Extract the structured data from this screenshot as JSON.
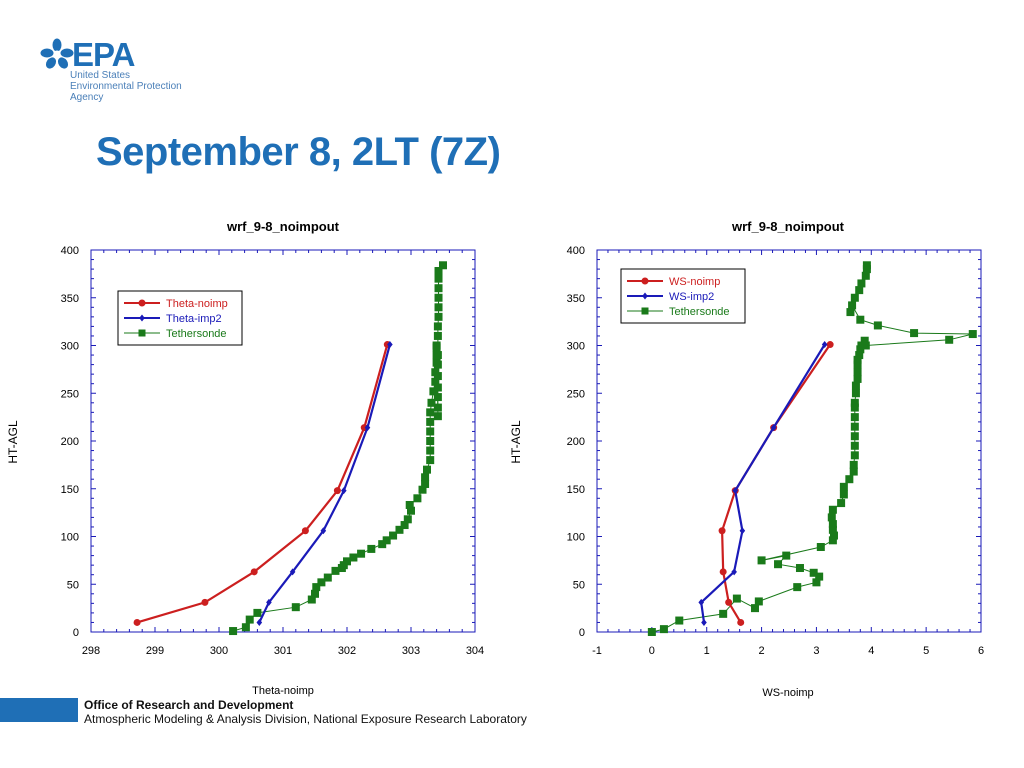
{
  "brand": {
    "name": "EPA",
    "lines": [
      "United States",
      "Environmental Protection",
      "Agency"
    ],
    "color": "#1f6fb6"
  },
  "page_title": "September 8, 2LT (7Z)",
  "footer": {
    "org": "Office of Research and Development",
    "division": "Atmospheric Modeling & Analysis Division, National Exposure Research Laboratory"
  },
  "chart_data": [
    {
      "type": "line",
      "title": "wrf_9-8_noimpout",
      "xlabel": "Theta-noimp",
      "ylabel": "HT-AGL",
      "xlim": [
        298,
        304
      ],
      "ylim": [
        0,
        400
      ],
      "xticks": [
        298,
        299,
        300,
        301,
        302,
        303,
        304
      ],
      "yticks": [
        0,
        50,
        100,
        150,
        200,
        250,
        300,
        350,
        400
      ],
      "legend_position": "top-left",
      "series": [
        {
          "name": "Theta-noimp",
          "color": "#cc1f1f",
          "marker": "circle",
          "x": [
            298.72,
            299.78,
            300.55,
            301.35,
            301.85,
            302.27,
            302.63
          ],
          "y": [
            10,
            31,
            63,
            106,
            148,
            214,
            301
          ]
        },
        {
          "name": "Theta-imp2",
          "color": "#1a1ab8",
          "marker": "diamond",
          "x": [
            300.63,
            300.78,
            301.15,
            301.63,
            301.95,
            302.32,
            302.67
          ],
          "y": [
            10,
            31,
            63,
            106,
            148,
            214,
            301
          ]
        },
        {
          "name": "Tethersonde",
          "color": "#1a7a1a",
          "marker": "square",
          "x": [
            300.22,
            300.42,
            300.48,
            300.6,
            301.2,
            301.45,
            301.5,
            301.52,
            301.6,
            301.7,
            301.82,
            301.92,
            301.95,
            302.0,
            302.1,
            302.22,
            302.38,
            302.55,
            302.62,
            302.72,
            302.82,
            302.9,
            302.95,
            303.0,
            302.98,
            303.1,
            303.18,
            303.22,
            303.22,
            303.25,
            303.3,
            303.3,
            303.3,
            303.3,
            303.3,
            303.3,
            303.32,
            303.35,
            303.38,
            303.38,
            303.4,
            303.4,
            303.4,
            303.4,
            303.42,
            303.42,
            303.42,
            303.42,
            303.42,
            303.42,
            303.42,
            303.42,
            303.42,
            303.43,
            303.43,
            303.43,
            303.43,
            303.43,
            303.43,
            303.5
          ],
          "y": [
            1,
            5,
            13,
            20,
            26,
            34,
            40,
            47,
            52,
            57,
            64,
            67,
            70,
            74,
            78,
            82,
            87,
            92,
            96,
            101,
            107,
            112,
            118,
            127,
            133,
            140,
            149,
            155,
            162,
            170,
            180,
            190,
            200,
            210,
            220,
            230,
            240,
            252,
            262,
            272,
            282,
            290,
            298,
            300,
            226,
            235,
            246,
            256,
            268,
            280,
            290,
            310,
            320,
            330,
            340,
            350,
            360,
            370,
            378,
            384
          ]
        }
      ]
    },
    {
      "type": "line",
      "title": "wrf_9-8_noimpout",
      "xlabel": "WS-noimp",
      "ylabel": "HT-AGL",
      "xlim": [
        -1,
        6
      ],
      "ylim": [
        0,
        400
      ],
      "xticks": [
        -1,
        0,
        1,
        2,
        3,
        4,
        5,
        6
      ],
      "yticks": [
        0,
        50,
        100,
        150,
        200,
        250,
        300,
        350,
        400
      ],
      "legend_position": "top-left",
      "series": [
        {
          "name": "WS-noimp",
          "color": "#cc1f1f",
          "marker": "circle",
          "x": [
            1.62,
            1.4,
            1.3,
            1.28,
            1.52,
            2.22,
            3.25
          ],
          "y": [
            10,
            31,
            63,
            106,
            148,
            214,
            301
          ]
        },
        {
          "name": "WS-imp2",
          "color": "#1a1ab8",
          "marker": "diamond",
          "x": [
            0.95,
            0.9,
            1.5,
            1.65,
            1.52,
            2.22,
            3.15
          ],
          "y": [
            10,
            31,
            63,
            106,
            148,
            214,
            301
          ]
        },
        {
          "name": "Tethersonde",
          "color": "#1a7a1a",
          "marker": "square",
          "x": [
            0.0,
            0.22,
            0.5,
            1.3,
            1.55,
            1.88,
            1.95,
            2.65,
            3.0,
            3.05,
            2.95,
            2.7,
            2.3,
            2.45,
            2.0,
            3.08,
            3.3,
            3.32,
            3.3,
            3.3,
            3.28,
            3.3,
            3.45,
            3.5,
            3.5,
            3.6,
            3.68,
            3.68,
            3.7,
            3.7,
            3.7,
            3.7,
            3.7,
            3.7,
            3.7,
            3.72,
            3.72,
            3.75,
            3.75,
            3.75,
            3.75,
            3.78,
            3.8,
            3.82,
            3.88,
            3.9,
            5.42,
            5.85,
            4.78,
            4.12,
            3.8,
            3.65,
            3.62,
            3.7,
            3.78,
            3.82,
            3.9,
            3.92,
            3.92
          ],
          "y": [
            0,
            3,
            12,
            19,
            35,
            25,
            32,
            47,
            52,
            58,
            62,
            67,
            71,
            80,
            75,
            89,
            96,
            101,
            107,
            113,
            120,
            128,
            135,
            144,
            152,
            160,
            168,
            175,
            185,
            195,
            205,
            215,
            225,
            235,
            240,
            250,
            258,
            265,
            272,
            280,
            285,
            290,
            296,
            300,
            305,
            300,
            306,
            312,
            313,
            321,
            327,
            342,
            335,
            350,
            358,
            365,
            373,
            380,
            384
          ]
        }
      ]
    }
  ]
}
